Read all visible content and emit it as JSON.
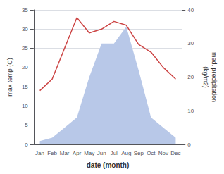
{
  "chart_data": {
    "type": "line",
    "categories": [
      "Jan",
      "Feb",
      "Mar",
      "Apr",
      "May",
      "Jun",
      "Jul",
      "Aug",
      "Sep",
      "Oct",
      "Nov",
      "Dec"
    ],
    "xlabel": "date (month)",
    "ylabel": "max temp (C)",
    "y2label": "med. precipitation\n(kg/m2)",
    "series": [
      {
        "type": "area",
        "color": "#b8c8e8",
        "axis": "y2",
        "values": [
          1,
          2,
          5,
          8,
          20,
          30,
          30,
          35,
          22,
          8,
          5,
          2
        ]
      },
      {
        "type": "line",
        "color": "#cc4444",
        "axis": "y",
        "values": [
          14,
          17,
          25,
          33,
          29,
          30,
          32,
          31,
          26,
          24,
          20,
          17
        ]
      }
    ],
    "ylim": [
      0,
      35
    ],
    "yticks": [
      0,
      5,
      10,
      15,
      20,
      25,
      30,
      35
    ],
    "y2lim": [
      0,
      40
    ],
    "y2ticks": [
      0,
      10,
      20,
      30,
      40
    ],
    "grid": true
  }
}
